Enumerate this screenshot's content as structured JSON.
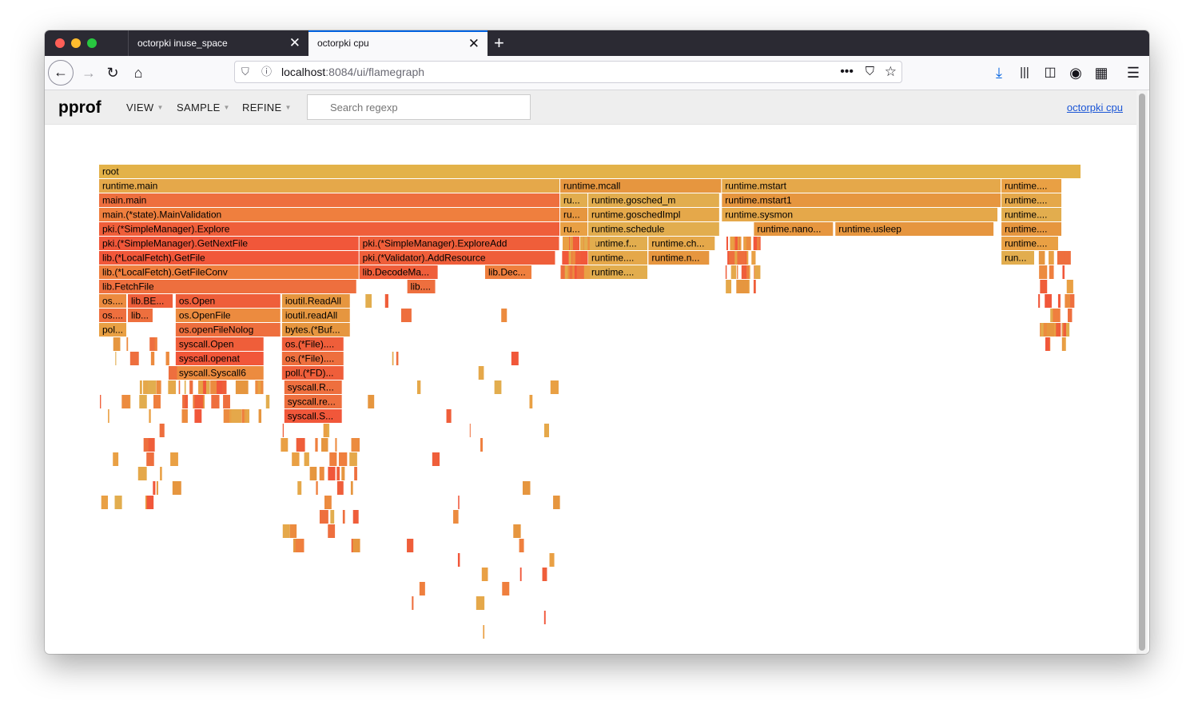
{
  "browser": {
    "tabs": [
      {
        "title": "octorpki inuse_space",
        "active": false
      },
      {
        "title": "octorpki cpu",
        "active": true
      }
    ],
    "url": {
      "host": "localhost",
      "path": ":8084/ui/flamegraph"
    }
  },
  "pprof": {
    "logo": "pprof",
    "menus": [
      "VIEW",
      "SAMPLE",
      "REFINE"
    ],
    "search_placeholder": "Search regexp",
    "profile_link": "octorpki cpu"
  },
  "flamegraph": {
    "colors": {
      "root": "#e3b249",
      "hot": [
        "#f1573a",
        "#ef5e3a",
        "#ee6f3e",
        "#ef7f3e",
        "#ec8b3f"
      ],
      "warm": [
        "#e6963f",
        "#e9a044",
        "#e5a84a",
        "#e2ad4e"
      ]
    },
    "frames": [
      {
        "label": "root",
        "depth": 0,
        "start": 0,
        "width": 1.0
      },
      {
        "label": "runtime.main",
        "depth": 1,
        "start": 0,
        "width": 0.4695
      },
      {
        "label": "runtime.mcall",
        "depth": 1,
        "start": 0.4695,
        "width": 0.1646
      },
      {
        "label": "runtime.mstart",
        "depth": 1,
        "start": 0.6341,
        "width": 0.2846
      },
      {
        "label": "runtime....",
        "depth": 1,
        "start": 0.9187,
        "width": 0.0618
      },
      {
        "label": "main.main",
        "depth": 2,
        "start": 0,
        "width": 0.4695
      },
      {
        "label": "ru...",
        "depth": 2,
        "start": 0.4695,
        "width": 0.0285
      },
      {
        "label": "runtime.gosched_m",
        "depth": 2,
        "start": 0.498,
        "width": 0.1341
      },
      {
        "label": "runtime.mstart1",
        "depth": 2,
        "start": 0.6341,
        "width": 0.2846
      },
      {
        "label": "runtime....",
        "depth": 2,
        "start": 0.9187,
        "width": 0.0618
      },
      {
        "label": "main.(*state).MainValidation",
        "depth": 3,
        "start": 0,
        "width": 0.4695
      },
      {
        "label": "ru...",
        "depth": 3,
        "start": 0.4695,
        "width": 0.0285
      },
      {
        "label": "runtime.goschedImpl",
        "depth": 3,
        "start": 0.498,
        "width": 0.1341
      },
      {
        "label": "runtime.sysmon",
        "depth": 3,
        "start": 0.6341,
        "width": 0.2813
      },
      {
        "label": "runtime....",
        "depth": 3,
        "start": 0.9187,
        "width": 0.0618
      },
      {
        "label": "pki.(*SimpleManager).Explore",
        "depth": 4,
        "start": 0,
        "width": 0.4695
      },
      {
        "label": "ru...",
        "depth": 4,
        "start": 0.4695,
        "width": 0.0285
      },
      {
        "label": "runtime.schedule",
        "depth": 4,
        "start": 0.498,
        "width": 0.1341
      },
      {
        "label": "runtime.nano...",
        "depth": 4,
        "start": 0.6667,
        "width": 0.0813
      },
      {
        "label": "runtime.usleep",
        "depth": 4,
        "start": 0.7496,
        "width": 0.1618
      },
      {
        "label": "runtime....",
        "depth": 4,
        "start": 0.9187,
        "width": 0.0618
      },
      {
        "label": "pki.(*SimpleManager).GetNextFile",
        "depth": 5,
        "start": 0,
        "width": 0.265
      },
      {
        "label": "pki.(*SimpleManager).ExploreAdd",
        "depth": 5,
        "start": 0.265,
        "width": 0.2041
      },
      {
        "label": "runtime.f...",
        "depth": 5,
        "start": 0.498,
        "width": 0.061
      },
      {
        "label": "runtime.ch...",
        "depth": 5,
        "start": 0.5593,
        "width": 0.0683
      },
      {
        "label": "runtime....",
        "depth": 5,
        "start": 0.9187,
        "width": 0.0585
      },
      {
        "label": "lib.(*LocalFetch).GetFile",
        "depth": 6,
        "start": 0,
        "width": 0.265
      },
      {
        "label": "pki.(*Validator).AddResource",
        "depth": 6,
        "start": 0.265,
        "width": 0.2
      },
      {
        "label": "runtime....",
        "depth": 6,
        "start": 0.498,
        "width": 0.061
      },
      {
        "label": "runtime.n...",
        "depth": 6,
        "start": 0.5593,
        "width": 0.0626
      },
      {
        "label": "run...",
        "depth": 6,
        "start": 0.9187,
        "width": 0.0341
      },
      {
        "label": "lib.(*LocalFetch).GetFileConv",
        "depth": 7,
        "start": 0,
        "width": 0.265
      },
      {
        "label": "lib.DecodeMa...",
        "depth": 7,
        "start": 0.265,
        "width": 0.0805
      },
      {
        "label": "lib.Dec...",
        "depth": 7,
        "start": 0.393,
        "width": 0.048
      },
      {
        "label": "runtime....",
        "depth": 7,
        "start": 0.498,
        "width": 0.061
      },
      {
        "label": "lib.FetchFile",
        "depth": 8,
        "start": 0,
        "width": 0.2626
      },
      {
        "label": "lib....",
        "depth": 8,
        "start": 0.3138,
        "width": 0.0292
      },
      {
        "label": "os....",
        "depth": 9,
        "start": 0,
        "width": 0.0285
      },
      {
        "label": "lib.BE...",
        "depth": 9,
        "start": 0.0293,
        "width": 0.0464
      },
      {
        "label": "os.Open",
        "depth": 9,
        "start": 0.078,
        "width": 0.1073
      },
      {
        "label": "ioutil.ReadAll",
        "depth": 9,
        "start": 0.1862,
        "width": 0.0699
      },
      {
        "label": "os....",
        "depth": 10,
        "start": 0,
        "width": 0.0285
      },
      {
        "label": "lib...",
        "depth": 10,
        "start": 0.0293,
        "width": 0.026
      },
      {
        "label": "os.OpenFile",
        "depth": 10,
        "start": 0.078,
        "width": 0.1073
      },
      {
        "label": "ioutil.readAll",
        "depth": 10,
        "start": 0.1862,
        "width": 0.0699
      },
      {
        "label": "pol...",
        "depth": 11,
        "start": 0,
        "width": 0.0285
      },
      {
        "label": "os.openFileNolog",
        "depth": 11,
        "start": 0.078,
        "width": 0.1073
      },
      {
        "label": "bytes.(*Buf...",
        "depth": 11,
        "start": 0.1862,
        "width": 0.0699
      },
      {
        "label": "syscall.Open",
        "depth": 12,
        "start": 0.078,
        "width": 0.0902
      },
      {
        "label": "os.(*File)....",
        "depth": 12,
        "start": 0.1862,
        "width": 0.0634
      },
      {
        "label": "syscall.openat",
        "depth": 13,
        "start": 0.078,
        "width": 0.0902
      },
      {
        "label": "os.(*File)....",
        "depth": 13,
        "start": 0.1862,
        "width": 0.0634
      },
      {
        "label": "syscall.Syscall6",
        "depth": 14,
        "start": 0.078,
        "width": 0.0902
      },
      {
        "label": "poll.(*FD)...",
        "depth": 14,
        "start": 0.1862,
        "width": 0.0634
      },
      {
        "label": "syscall.R...",
        "depth": 15,
        "start": 0.1886,
        "width": 0.0593
      },
      {
        "label": "syscall.re...",
        "depth": 16,
        "start": 0.1886,
        "width": 0.0593
      },
      {
        "label": "syscall.S...",
        "depth": 17,
        "start": 0.1886,
        "width": 0.0593
      }
    ]
  }
}
